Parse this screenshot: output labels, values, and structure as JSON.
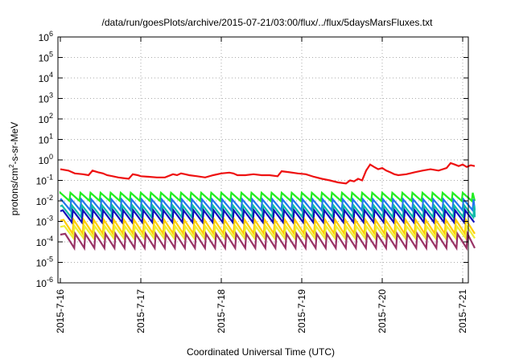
{
  "chart_data": {
    "type": "line",
    "title": "/data/run/goesPlots/archive/2015-07-21/03:00/flux/../flux/5daysMarsFluxes.txt",
    "xlabel": "Coordinated Universal Time (UTC)",
    "ylabel_base": "protons/cm",
    "ylabel_sup": "2",
    "ylabel_rest": "-s-sr-MeV",
    "y_scale": "log",
    "ylim_exp": [
      -6,
      6
    ],
    "y_ticks": [
      {
        "base": "10",
        "exp": "-6"
      },
      {
        "base": "10",
        "exp": "-5"
      },
      {
        "base": "10",
        "exp": "-4"
      },
      {
        "base": "10",
        "exp": "-3"
      },
      {
        "base": "10",
        "exp": "-2"
      },
      {
        "base": "10",
        "exp": "-1"
      },
      {
        "base": "10",
        "exp": "0"
      },
      {
        "base": "10",
        "exp": "1"
      },
      {
        "base": "10",
        "exp": "2"
      },
      {
        "base": "10",
        "exp": "3"
      },
      {
        "base": "10",
        "exp": "4"
      },
      {
        "base": "10",
        "exp": "5"
      },
      {
        "base": "10",
        "exp": "6"
      }
    ],
    "x_ticks": [
      "2015-7-16",
      "2015-7-17",
      "2015-7-18",
      "2015-7-19",
      "2015-7-20",
      "2015-7-21"
    ],
    "x_range_days": [
      0,
      5.15
    ],
    "grid": true,
    "series": [
      {
        "color": "#ee1111",
        "values": [
          [
            0.0,
            0.35
          ],
          [
            0.1,
            0.3
          ],
          [
            0.18,
            0.22
          ],
          [
            0.28,
            0.2
          ],
          [
            0.35,
            0.18
          ],
          [
            0.4,
            0.3
          ],
          [
            0.47,
            0.25
          ],
          [
            0.53,
            0.22
          ],
          [
            0.58,
            0.18
          ],
          [
            0.65,
            0.16
          ],
          [
            0.72,
            0.14
          ],
          [
            0.78,
            0.13
          ],
          [
            0.85,
            0.12
          ],
          [
            0.9,
            0.2
          ],
          [
            0.96,
            0.18
          ],
          [
            1.0,
            0.16
          ],
          [
            1.1,
            0.15
          ],
          [
            1.2,
            0.14
          ],
          [
            1.3,
            0.14
          ],
          [
            1.4,
            0.2
          ],
          [
            1.45,
            0.18
          ],
          [
            1.5,
            0.22
          ],
          [
            1.55,
            0.2
          ],
          [
            1.6,
            0.18
          ],
          [
            1.7,
            0.16
          ],
          [
            1.8,
            0.14
          ],
          [
            1.9,
            0.18
          ],
          [
            2.0,
            0.22
          ],
          [
            2.1,
            0.24
          ],
          [
            2.15,
            0.22
          ],
          [
            2.2,
            0.18
          ],
          [
            2.3,
            0.18
          ],
          [
            2.4,
            0.2
          ],
          [
            2.5,
            0.18
          ],
          [
            2.6,
            0.18
          ],
          [
            2.7,
            0.16
          ],
          [
            2.75,
            0.28
          ],
          [
            2.85,
            0.25
          ],
          [
            2.95,
            0.22
          ],
          [
            3.05,
            0.2
          ],
          [
            3.15,
            0.15
          ],
          [
            3.25,
            0.12
          ],
          [
            3.35,
            0.1
          ],
          [
            3.45,
            0.08
          ],
          [
            3.55,
            0.07
          ],
          [
            3.6,
            0.1
          ],
          [
            3.65,
            0.09
          ],
          [
            3.7,
            0.12
          ],
          [
            3.75,
            0.1
          ],
          [
            3.8,
            0.3
          ],
          [
            3.85,
            0.6
          ],
          [
            3.9,
            0.45
          ],
          [
            3.95,
            0.35
          ],
          [
            4.0,
            0.4
          ],
          [
            4.05,
            0.3
          ],
          [
            4.1,
            0.25
          ],
          [
            4.15,
            0.2
          ],
          [
            4.2,
            0.18
          ],
          [
            4.3,
            0.2
          ],
          [
            4.4,
            0.25
          ],
          [
            4.5,
            0.3
          ],
          [
            4.6,
            0.35
          ],
          [
            4.7,
            0.3
          ],
          [
            4.8,
            0.4
          ],
          [
            4.85,
            0.7
          ],
          [
            4.9,
            0.6
          ],
          [
            4.95,
            0.5
          ],
          [
            5.0,
            0.6
          ],
          [
            5.05,
            0.45
          ],
          [
            5.1,
            0.55
          ],
          [
            5.15,
            0.5
          ]
        ]
      },
      {
        "color": "#22ee22",
        "peak": 0.025,
        "valley": 0.01,
        "period": 0.125,
        "phase": 0
      },
      {
        "color": "#2277ee",
        "peak": 0.012,
        "valley": 0.0035,
        "period": 0.125,
        "phase": 0.01
      },
      {
        "color": "#11bbaa",
        "peak": 0.006,
        "valley": 0.0016,
        "period": 0.125,
        "phase": 0.02
      },
      {
        "color": "#1111bb",
        "peak": 0.0035,
        "valley": 0.0009,
        "period": 0.125,
        "phase": 0.03
      },
      {
        "color": "#ffcc00",
        "peak": 0.0012,
        "valley": 0.00025,
        "period": 0.125,
        "phase": 0.04
      },
      {
        "color": "#eeee33",
        "peak": 0.0006,
        "valley": 0.00015,
        "period": 0.125,
        "phase": 0.05
      },
      {
        "color": "#993366",
        "peak": 0.00025,
        "valley": 5e-05,
        "period": 0.125,
        "phase": 0.06
      }
    ]
  }
}
